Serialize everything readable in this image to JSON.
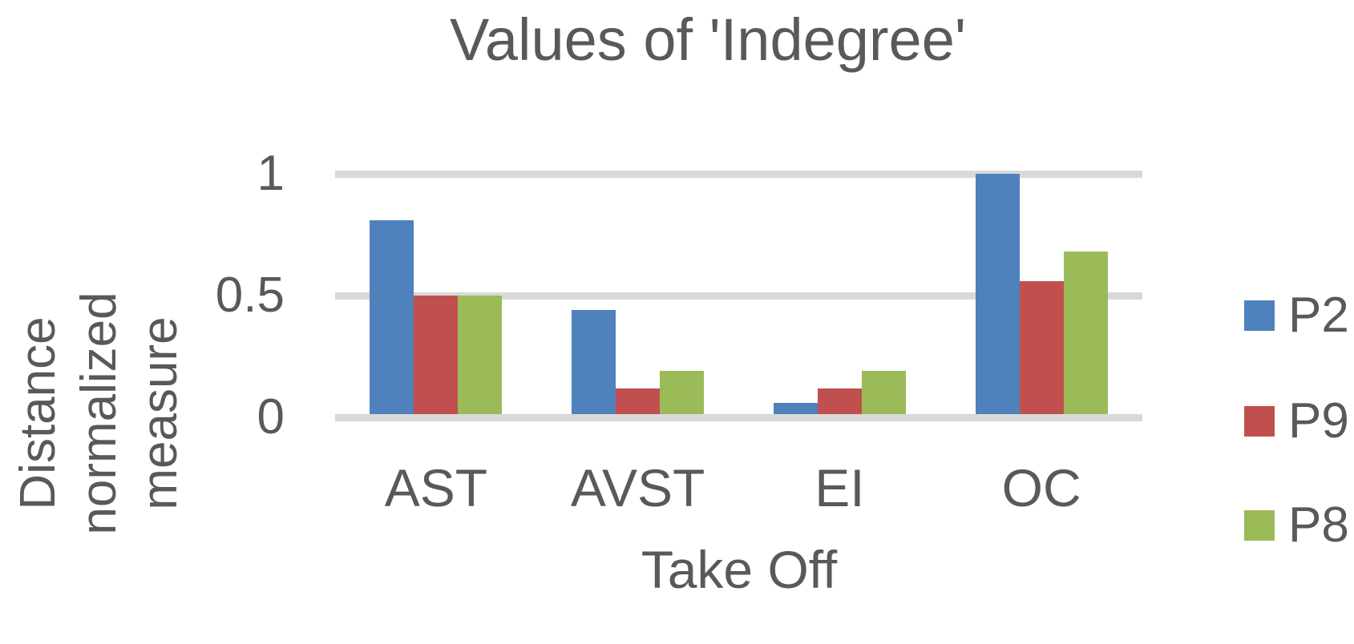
{
  "chart_data": {
    "type": "bar",
    "title": "Values of 'Indegree'",
    "xlabel": "Take Off",
    "ylabel": "Distance normalized measure",
    "ylabel_lines": [
      "Distance normalized",
      "measure"
    ],
    "categories": [
      "AST",
      "AVST",
      "EI",
      "OC"
    ],
    "series": [
      {
        "name": "P2",
        "color": "#4F81BD",
        "values": [
          0.81,
          0.44,
          0.06,
          1.0
        ]
      },
      {
        "name": "P9",
        "color": "#C0504D",
        "values": [
          0.5,
          0.12,
          0.12,
          0.56
        ]
      },
      {
        "name": "P8",
        "color": "#9BBB59",
        "values": [
          0.5,
          0.19,
          0.19,
          0.68
        ]
      }
    ],
    "yticks": [
      1,
      0.5,
      0
    ],
    "ytick_labels": [
      "1",
      "0.5",
      "0"
    ],
    "ylim": [
      0,
      1
    ],
    "grid": true,
    "legend_position": "right"
  },
  "colors": {
    "text": "#595959",
    "gridline": "#D9D9D9",
    "background": "#FFFFFF"
  }
}
